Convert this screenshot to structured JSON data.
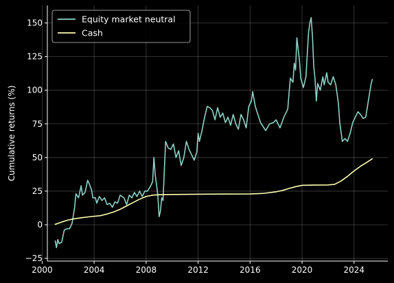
{
  "chart_data": {
    "type": "line",
    "title": "",
    "xlabel": "",
    "ylabel": "Cumulative returns (%)",
    "xlim": [
      2000.4,
      2026.6
    ],
    "ylim": [
      -27,
      163
    ],
    "x_ticks": [
      2000,
      2004,
      2008,
      2012,
      2016,
      2020,
      2024
    ],
    "x_tick_labels": [
      "2000",
      "2004",
      "2008",
      "2012",
      "2016",
      "2020",
      "2024"
    ],
    "y_ticks": [
      -25,
      0,
      25,
      50,
      75,
      100,
      125,
      150
    ],
    "y_tick_labels": [
      "−25",
      "0",
      "25",
      "50",
      "75",
      "100",
      "125",
      "150"
    ],
    "grid": true,
    "legend_position": "top-left",
    "background": "#000000",
    "series": [
      {
        "name": "Equity market neutral",
        "color": "#8dd3c7",
        "points": [
          [
            2001.0,
            -12
          ],
          [
            2001.1,
            -17
          ],
          [
            2001.2,
            -11
          ],
          [
            2001.3,
            -14
          ],
          [
            2001.5,
            -13
          ],
          [
            2001.7,
            -4
          ],
          [
            2001.9,
            -3
          ],
          [
            2002.1,
            -3
          ],
          [
            2002.3,
            1
          ],
          [
            2002.5,
            13
          ],
          [
            2002.6,
            23
          ],
          [
            2002.8,
            20
          ],
          [
            2003.0,
            29
          ],
          [
            2003.1,
            22
          ],
          [
            2003.3,
            24
          ],
          [
            2003.5,
            33
          ],
          [
            2003.6,
            31
          ],
          [
            2003.8,
            26
          ],
          [
            2003.9,
            20
          ],
          [
            2004.1,
            20
          ],
          [
            2004.2,
            16
          ],
          [
            2004.4,
            21
          ],
          [
            2004.6,
            18
          ],
          [
            2004.8,
            20
          ],
          [
            2005.0,
            15
          ],
          [
            2005.2,
            16
          ],
          [
            2005.4,
            13
          ],
          [
            2005.6,
            17
          ],
          [
            2005.8,
            16
          ],
          [
            2006.0,
            22
          ],
          [
            2006.3,
            20
          ],
          [
            2006.5,
            15
          ],
          [
            2006.7,
            22
          ],
          [
            2006.9,
            20
          ],
          [
            2007.1,
            24
          ],
          [
            2007.3,
            21
          ],
          [
            2007.5,
            25
          ],
          [
            2007.7,
            21
          ],
          [
            2007.9,
            25
          ],
          [
            2008.1,
            25
          ],
          [
            2008.3,
            28
          ],
          [
            2008.5,
            32
          ],
          [
            2008.6,
            50
          ],
          [
            2008.7,
            37
          ],
          [
            2008.8,
            30
          ],
          [
            2008.9,
            22
          ],
          [
            2009.0,
            6
          ],
          [
            2009.1,
            10
          ],
          [
            2009.2,
            20
          ],
          [
            2009.3,
            18
          ],
          [
            2009.5,
            62
          ],
          [
            2009.7,
            57
          ],
          [
            2009.9,
            56
          ],
          [
            2010.1,
            60
          ],
          [
            2010.3,
            50
          ],
          [
            2010.5,
            55
          ],
          [
            2010.7,
            44
          ],
          [
            2010.9,
            50
          ],
          [
            2011.1,
            62
          ],
          [
            2011.3,
            56
          ],
          [
            2011.5,
            52
          ],
          [
            2011.7,
            48
          ],
          [
            2011.9,
            54
          ],
          [
            2012.0,
            68
          ],
          [
            2012.1,
            62
          ],
          [
            2012.3,
            70
          ],
          [
            2012.5,
            80
          ],
          [
            2012.7,
            88
          ],
          [
            2012.9,
            87
          ],
          [
            2013.1,
            85
          ],
          [
            2013.3,
            78
          ],
          [
            2013.5,
            87
          ],
          [
            2013.7,
            80
          ],
          [
            2013.9,
            83
          ],
          [
            2014.1,
            76
          ],
          [
            2014.3,
            80
          ],
          [
            2014.5,
            74
          ],
          [
            2014.7,
            82
          ],
          [
            2014.9,
            75
          ],
          [
            2015.1,
            71
          ],
          [
            2015.3,
            82
          ],
          [
            2015.5,
            78
          ],
          [
            2015.7,
            72
          ],
          [
            2015.9,
            88
          ],
          [
            2016.1,
            92
          ],
          [
            2016.2,
            99
          ],
          [
            2016.4,
            88
          ],
          [
            2016.6,
            82
          ],
          [
            2016.8,
            76
          ],
          [
            2017.0,
            73
          ],
          [
            2017.2,
            70
          ],
          [
            2017.5,
            75
          ],
          [
            2017.8,
            76
          ],
          [
            2018.0,
            78
          ],
          [
            2018.3,
            72
          ],
          [
            2018.6,
            80
          ],
          [
            2018.9,
            86
          ],
          [
            2019.0,
            98
          ],
          [
            2019.1,
            109
          ],
          [
            2019.3,
            106
          ],
          [
            2019.4,
            120
          ],
          [
            2019.5,
            115
          ],
          [
            2019.6,
            139
          ],
          [
            2019.8,
            122
          ],
          [
            2019.9,
            109
          ],
          [
            2020.1,
            102
          ],
          [
            2020.3,
            110
          ],
          [
            2020.5,
            143
          ],
          [
            2020.6,
            150
          ],
          [
            2020.7,
            154
          ],
          [
            2020.8,
            140
          ],
          [
            2020.9,
            118
          ],
          [
            2021.0,
            108
          ],
          [
            2021.1,
            92
          ],
          [
            2021.2,
            105
          ],
          [
            2021.4,
            100
          ],
          [
            2021.6,
            110
          ],
          [
            2021.7,
            104
          ],
          [
            2021.9,
            113
          ],
          [
            2022.0,
            106
          ],
          [
            2022.2,
            104
          ],
          [
            2022.4,
            110
          ],
          [
            2022.6,
            104
          ],
          [
            2022.8,
            90
          ],
          [
            2022.9,
            76
          ],
          [
            2023.1,
            62
          ],
          [
            2023.3,
            64
          ],
          [
            2023.5,
            62
          ],
          [
            2023.7,
            68
          ],
          [
            2023.9,
            76
          ],
          [
            2024.1,
            80
          ],
          [
            2024.3,
            84
          ],
          [
            2024.5,
            82
          ],
          [
            2024.7,
            79
          ],
          [
            2024.9,
            80
          ],
          [
            2025.1,
            92
          ],
          [
            2025.3,
            104
          ],
          [
            2025.4,
            108
          ]
        ]
      },
      {
        "name": "Cash",
        "color": "#ffffb3",
        "points": [
          [
            2001.0,
            0.3
          ],
          [
            2001.5,
            2
          ],
          [
            2002.0,
            3.5
          ],
          [
            2002.5,
            4.5
          ],
          [
            2003.0,
            5.2
          ],
          [
            2003.5,
            5.8
          ],
          [
            2004.0,
            6.3
          ],
          [
            2004.5,
            6.8
          ],
          [
            2005.0,
            8
          ],
          [
            2005.5,
            9.5
          ],
          [
            2006.0,
            11.5
          ],
          [
            2006.5,
            14
          ],
          [
            2007.0,
            16.5
          ],
          [
            2007.5,
            19
          ],
          [
            2008.0,
            21
          ],
          [
            2008.5,
            22
          ],
          [
            2009.0,
            22.3
          ],
          [
            2010.0,
            22.5
          ],
          [
            2012.0,
            22.7
          ],
          [
            2014.0,
            22.8
          ],
          [
            2016.0,
            22.9
          ],
          [
            2017.0,
            23.3
          ],
          [
            2018.0,
            24.5
          ],
          [
            2018.5,
            25.5
          ],
          [
            2019.0,
            27
          ],
          [
            2019.5,
            28.3
          ],
          [
            2020.0,
            29.3
          ],
          [
            2021.0,
            29.5
          ],
          [
            2022.0,
            29.6
          ],
          [
            2022.5,
            30
          ],
          [
            2023.0,
            32.5
          ],
          [
            2023.5,
            36
          ],
          [
            2024.0,
            40
          ],
          [
            2024.5,
            43.5
          ],
          [
            2025.0,
            46.5
          ],
          [
            2025.4,
            49
          ]
        ]
      }
    ]
  }
}
